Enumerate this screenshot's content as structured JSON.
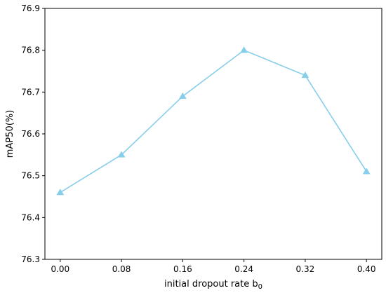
{
  "chart_data": {
    "type": "line",
    "title": "",
    "xlabel": "initial dropout rate b",
    "xlabel_subscript": "0",
    "ylabel": "mAP50(%)",
    "x": [
      0.0,
      0.08,
      0.16,
      0.24,
      0.32,
      0.4
    ],
    "x_tick_labels": [
      "0.00",
      "0.08",
      "0.16",
      "0.24",
      "0.32",
      "0.40"
    ],
    "series": [
      {
        "values": [
          76.46,
          76.55,
          76.69,
          76.8,
          76.74,
          76.51
        ],
        "color": "#87CEEB",
        "marker": "triangle-up"
      }
    ],
    "xlim": [
      -0.02,
      0.42
    ],
    "ylim": [
      76.3,
      76.9
    ],
    "y_ticks": [
      76.3,
      76.4,
      76.5,
      76.6,
      76.7,
      76.8,
      76.9
    ],
    "y_tick_labels": [
      "76.3",
      "76.4",
      "76.5",
      "76.6",
      "76.7",
      "76.8",
      "76.9"
    ],
    "grid": false,
    "legend": "none"
  }
}
